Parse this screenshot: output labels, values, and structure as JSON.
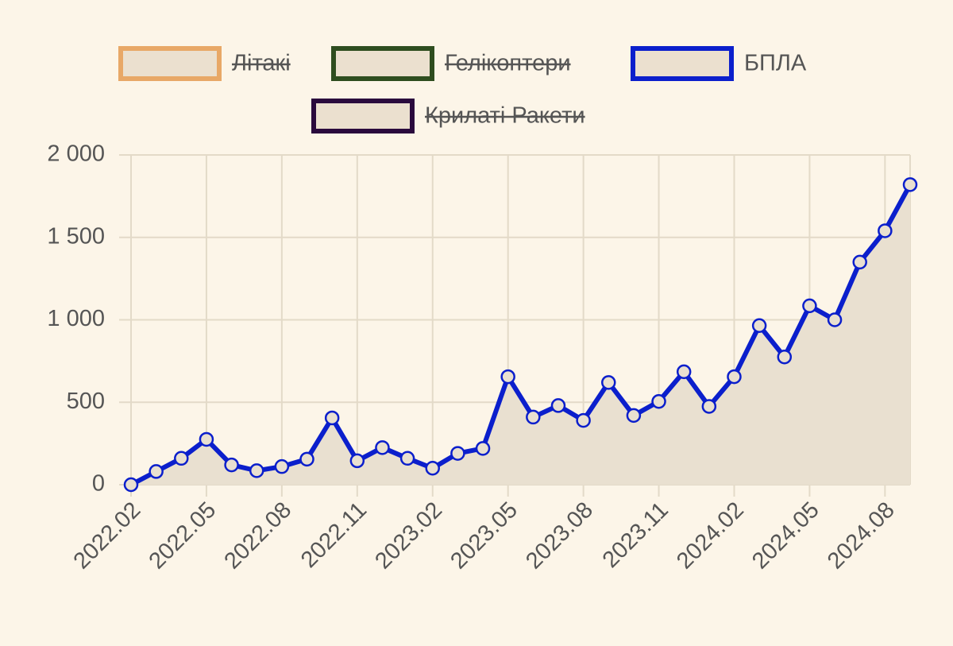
{
  "chart_data": {
    "type": "line",
    "categories": [
      "2022.02",
      null,
      null,
      "2022.05",
      null,
      null,
      "2022.08",
      null,
      null,
      "2022.11",
      null,
      null,
      "2023.02",
      null,
      null,
      "2023.05",
      null,
      null,
      "2023.08",
      null,
      null,
      "2023.11",
      null,
      null,
      "2024.02",
      null,
      null,
      "2024.05",
      null,
      null,
      "2024.08",
      null
    ],
    "series": [
      {
        "name": "Літакі",
        "color": "#e8a867",
        "hidden": true
      },
      {
        "name": "Гелікоптери",
        "color": "#2e4d1f",
        "hidden": true
      },
      {
        "name": "БПЛА",
        "color": "#0b1fcc",
        "hidden": false,
        "fill": true,
        "values": [
          0,
          80,
          160,
          275,
          120,
          85,
          110,
          155,
          405,
          145,
          225,
          160,
          100,
          190,
          220,
          655,
          410,
          480,
          390,
          620,
          420,
          505,
          685,
          475,
          655,
          965,
          775,
          1085,
          1000,
          1350,
          1540,
          1820
        ]
      },
      {
        "name": "Крилаті Ракети",
        "color": "#2a0a3d",
        "hidden": true
      }
    ],
    "ylim": [
      0,
      2000
    ],
    "yticks": [
      0,
      500,
      {
        "value": 1000,
        "label": "1 000"
      },
      {
        "value": 1500,
        "label": "1 500"
      },
      {
        "value": 2000,
        "label": "2 000"
      }
    ],
    "grid": true,
    "legend": "top"
  }
}
